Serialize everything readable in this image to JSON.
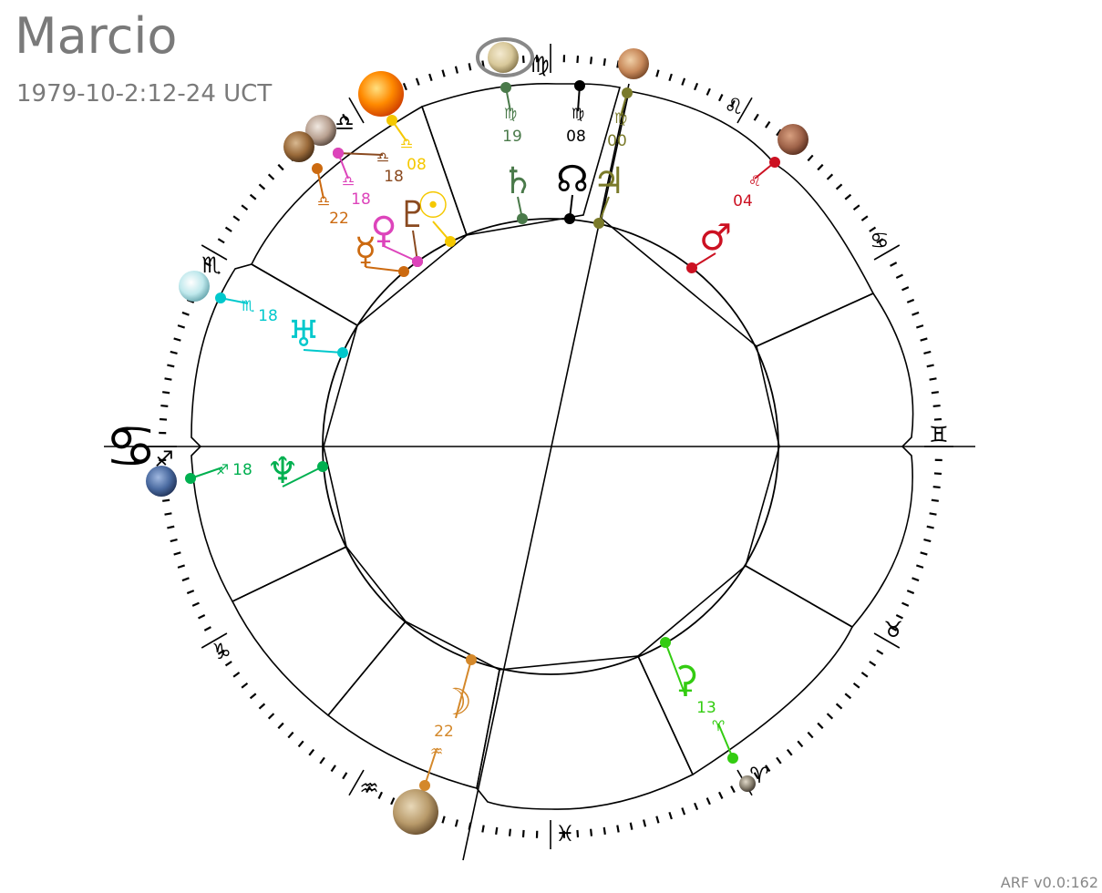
{
  "header": {
    "name": "Marcio",
    "datetime": "1979-10-2:12-24 UCT"
  },
  "footer": {
    "version": "ARF v0.0:162"
  },
  "chart": {
    "ascendant_sign_glyph": "♋",
    "zodiac_signs": [
      {
        "name": "Virgo",
        "glyph": "♍"
      },
      {
        "name": "Leo",
        "glyph": "♌"
      },
      {
        "name": "Cancer",
        "glyph": "♋"
      },
      {
        "name": "Gemini",
        "glyph": "♊"
      },
      {
        "name": "Taurus",
        "glyph": "♉"
      },
      {
        "name": "Aries",
        "glyph": "♈"
      },
      {
        "name": "Pisces",
        "glyph": "♓"
      },
      {
        "name": "Aquarius",
        "glyph": "♒"
      },
      {
        "name": "Capricorn",
        "glyph": "♑"
      },
      {
        "name": "Sagittarius",
        "glyph": "♐"
      },
      {
        "name": "Scorpio",
        "glyph": "♏"
      },
      {
        "name": "Libra",
        "glyph": "♎"
      }
    ],
    "bodies": [
      {
        "key": "saturn",
        "glyph": "♄",
        "sign_glyph": "♍",
        "degree": "19",
        "color": "#4a7a4a",
        "sphere_color": "#d8c89a"
      },
      {
        "key": "node",
        "glyph": "☊",
        "sign_glyph": "♍",
        "degree": "08",
        "color": "#000000",
        "sphere_color": ""
      },
      {
        "key": "jupiter",
        "glyph": "♃",
        "sign_glyph": "♍",
        "degree": "00",
        "color": "#7a7a2a",
        "sphere_color": "#c8895a"
      },
      {
        "key": "mars",
        "glyph": "♂",
        "sign_glyph": "♌",
        "degree": "04",
        "color": "#cc1122",
        "sphere_color": "#a0644a"
      },
      {
        "key": "sun",
        "glyph": "☉",
        "sign_glyph": "♎",
        "degree": "08",
        "color": "#f5c800",
        "sphere_color": "#ff8a00"
      },
      {
        "key": "pluto",
        "glyph": "♇",
        "sign_glyph": "♎",
        "degree": "18",
        "color": "#8a4a20",
        "sphere_color": "#b8a090"
      },
      {
        "key": "venus",
        "glyph": "♀",
        "sign_glyph": "♎",
        "degree": "18",
        "color": "#dd44bb",
        "sphere_color": ""
      },
      {
        "key": "mercury",
        "glyph": "☿",
        "sign_glyph": "♎",
        "degree": "22",
        "color": "#cc6a10",
        "sphere_color": "#9a6a3a"
      },
      {
        "key": "uranus",
        "glyph": "♅",
        "sign_glyph": "♏",
        "degree": "18",
        "color": "#00c8cc",
        "sphere_color": "#bfe8ec"
      },
      {
        "key": "neptune",
        "glyph": "♆",
        "sign_glyph": "♐",
        "degree": "18",
        "color": "#00b050",
        "sphere_color": "#4a6aa0"
      },
      {
        "key": "moon",
        "glyph": "☽",
        "sign_glyph": "♒",
        "degree": "22",
        "color": "#d4882a",
        "sphere_color": "#b89a6a"
      },
      {
        "key": "chiron",
        "glyph": "⚳",
        "sign_glyph": "♈",
        "degree": "13",
        "color": "#33cc11",
        "sphere_color": "#888070"
      }
    ]
  }
}
